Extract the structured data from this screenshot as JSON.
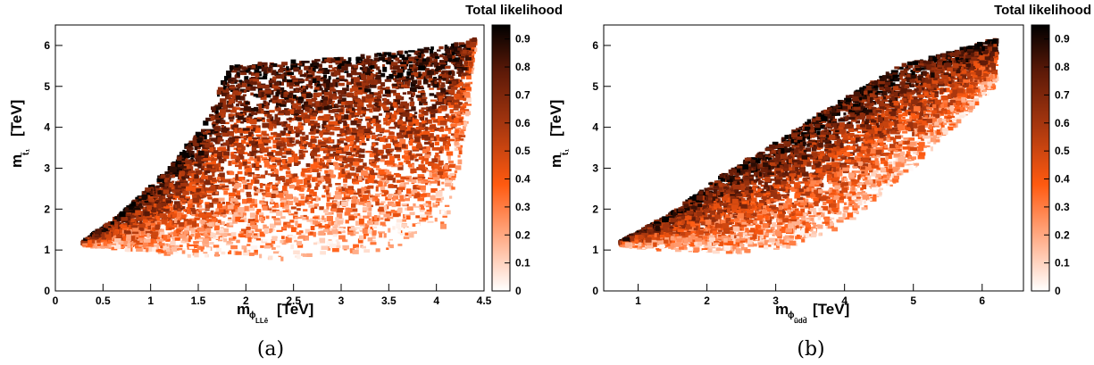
{
  "colorbar": {
    "stops": [
      "#ffffff",
      "#ff5a10",
      "#a8370f",
      "#5e1a08",
      "#000000"
    ]
  },
  "chart_data": [
    {
      "type": "heatmap",
      "panel_label": "(a)",
      "title": "Total likelihood",
      "xlabel": "m",
      "xlabel_sub": "ϕ",
      "xlabel_subsub": "LLē",
      "xlabel_unit": "[TeV]",
      "ylabel": "m",
      "ylabel_sub": "t̃₁",
      "ylabel_unit": "[TeV]",
      "xlim": [
        0,
        4.5
      ],
      "ylim": [
        0,
        6.5
      ],
      "xticks": [
        0,
        0.5,
        1,
        1.5,
        2,
        2.5,
        3,
        3.5,
        4,
        4.5
      ],
      "xtick_labels": [
        "0",
        "0.5",
        "1",
        "1.5",
        "2",
        "2.5",
        "3",
        "3.5",
        "4",
        "4.5"
      ],
      "yticks": [
        0,
        1,
        2,
        3,
        4,
        5,
        6
      ],
      "ytick_labels": [
        "0",
        "1",
        "2",
        "3",
        "4",
        "5",
        "6"
      ],
      "zlim": [
        0,
        0.95
      ],
      "zticks": [
        0,
        0.1,
        0.2,
        0.3,
        0.4,
        0.5,
        0.6,
        0.7,
        0.8,
        0.9
      ],
      "ztick_labels": [
        "0",
        "0.1",
        "0.2",
        "0.3",
        "0.4",
        "0.5",
        "0.6",
        "0.7",
        "0.8",
        "0.9"
      ],
      "region": {
        "upper_boundary": [
          [
            0.3,
            1.2
          ],
          [
            0.7,
            1.9
          ],
          [
            1.2,
            3.0
          ],
          [
            1.55,
            4.0
          ],
          [
            1.75,
            5.0
          ],
          [
            1.85,
            5.5
          ],
          [
            3.0,
            5.7
          ],
          [
            4.0,
            5.95
          ],
          [
            4.4,
            6.15
          ]
        ],
        "lower_boundary": [
          [
            0.3,
            1.1
          ],
          [
            0.7,
            1.0
          ],
          [
            1.2,
            0.85
          ],
          [
            1.8,
            0.8
          ],
          [
            2.4,
            0.75
          ],
          [
            3.0,
            0.9
          ],
          [
            3.5,
            1.0
          ],
          [
            4.1,
            1.6
          ],
          [
            4.3,
            3.5
          ],
          [
            4.4,
            6.1
          ]
        ]
      }
    },
    {
      "type": "heatmap",
      "panel_label": "(b)",
      "title": "Total likelihood",
      "xlabel": "m",
      "xlabel_sub": "ϕ",
      "xlabel_subsub": "ūdd̄",
      "xlabel_unit": "[TeV]",
      "ylabel": "m",
      "ylabel_sub": "t̃₁",
      "ylabel_unit": "[TeV]",
      "xlim": [
        0.5,
        6.6
      ],
      "ylim": [
        0,
        6.5
      ],
      "xticks": [
        1,
        2,
        3,
        4,
        5,
        6
      ],
      "xtick_labels": [
        "1",
        "2",
        "3",
        "4",
        "5",
        "6"
      ],
      "yticks": [
        0,
        1,
        2,
        3,
        4,
        5,
        6
      ],
      "ytick_labels": [
        "0",
        "1",
        "2",
        "3",
        "4",
        "5",
        "6"
      ],
      "zlim": [
        0,
        0.95
      ],
      "zticks": [
        0,
        0.1,
        0.2,
        0.3,
        0.4,
        0.5,
        0.6,
        0.7,
        0.8,
        0.9
      ],
      "ztick_labels": [
        "0",
        "0.1",
        "0.2",
        "0.3",
        "0.4",
        "0.5",
        "0.6",
        "0.7",
        "0.8",
        "0.9"
      ],
      "region": {
        "upper_boundary": [
          [
            0.75,
            1.2
          ],
          [
            1.5,
            1.9
          ],
          [
            2.2,
            2.8
          ],
          [
            3.0,
            3.6
          ],
          [
            3.8,
            4.5
          ],
          [
            4.8,
            5.5
          ],
          [
            5.5,
            5.8
          ],
          [
            6.2,
            6.15
          ]
        ],
        "lower_boundary": [
          [
            0.75,
            1.1
          ],
          [
            1.5,
            1.0
          ],
          [
            2.5,
            0.9
          ],
          [
            3.3,
            1.1
          ],
          [
            4.0,
            1.6
          ],
          [
            5.0,
            3.0
          ],
          [
            5.7,
            4.2
          ],
          [
            6.2,
            5.0
          ],
          [
            6.2,
            6.1
          ]
        ]
      }
    }
  ]
}
